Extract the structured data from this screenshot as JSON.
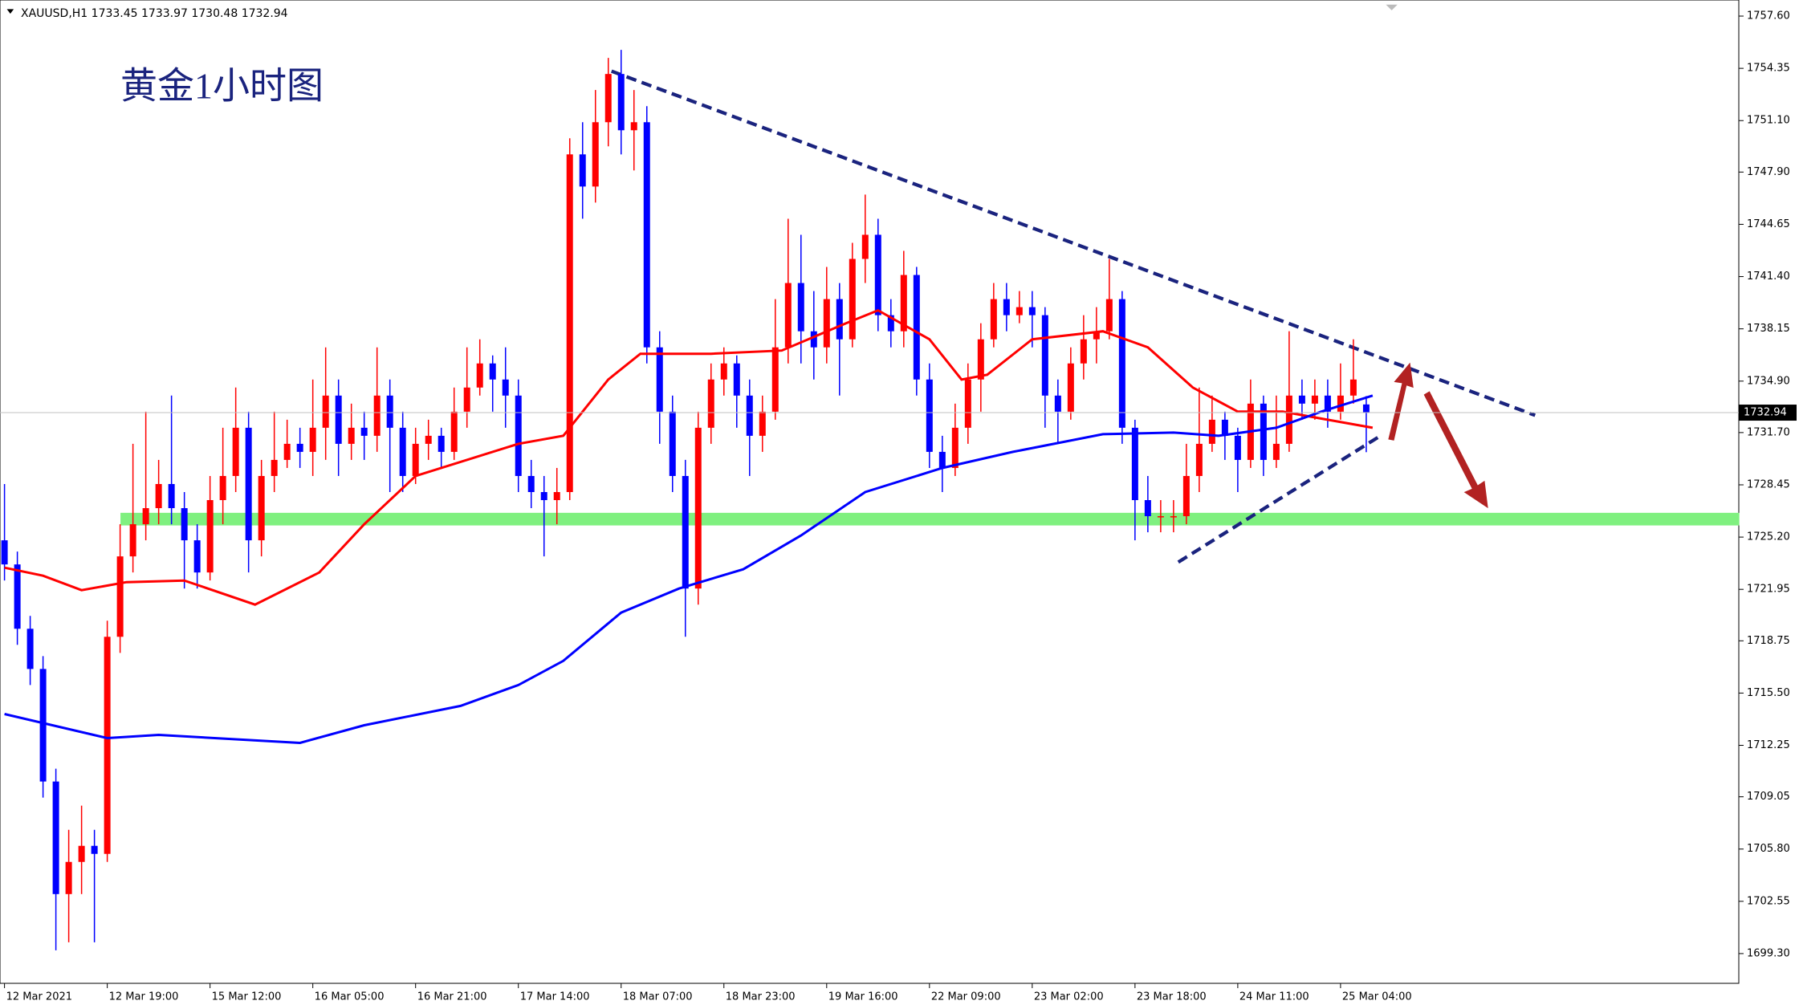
{
  "chart_data": {
    "type": "candlestick",
    "title": "黄金1小时图",
    "header": "XAUUSD,H1  1733.45 1733.97 1730.48 1732.94",
    "up_color": "#ff0000",
    "down_color": "#0000ff",
    "xlim": [
      -0.7,
      270
    ],
    "ylim": [
      1697.45,
      1758.6
    ],
    "xticks": [
      {
        "value": 0,
        "label": "12 Mar 2021"
      },
      {
        "value": 16,
        "label": "12 Mar 19:00"
      },
      {
        "value": 32,
        "label": "15 Mar 12:00"
      },
      {
        "value": 48,
        "label": "16 Mar 05:00"
      },
      {
        "value": 64,
        "label": "16 Mar 21:00"
      },
      {
        "value": 80,
        "label": "17 Mar 14:00"
      },
      {
        "value": 96,
        "label": "18 Mar 07:00"
      },
      {
        "value": 112,
        "label": "18 Mar 23:00"
      },
      {
        "value": 128,
        "label": "19 Mar 16:00"
      },
      {
        "value": 144,
        "label": "22 Mar 09:00"
      },
      {
        "value": 160,
        "label": "23 Mar 02:00"
      },
      {
        "value": 176,
        "label": "23 Mar 18:00"
      },
      {
        "value": 192,
        "label": "24 Mar 11:00"
      },
      {
        "value": 208,
        "label": "25 Mar 04:00"
      }
    ],
    "yticks": [
      {
        "value": 1699.3,
        "label": "1699.30"
      },
      {
        "value": 1702.55,
        "label": "1702.55"
      },
      {
        "value": 1705.8,
        "label": "1705.80"
      },
      {
        "value": 1709.05,
        "label": "1709.05"
      },
      {
        "value": 1712.25,
        "label": "1712.25"
      },
      {
        "value": 1715.5,
        "label": "1715.50"
      },
      {
        "value": 1718.75,
        "label": "1718.75"
      },
      {
        "value": 1721.95,
        "label": "1721.95"
      },
      {
        "value": 1725.2,
        "label": "1725.20"
      },
      {
        "value": 1728.45,
        "label": "1728.45"
      },
      {
        "value": 1731.7,
        "label": "1731.70"
      },
      {
        "value": 1734.9,
        "label": "1734.90"
      },
      {
        "value": 1738.15,
        "label": "1738.15"
      },
      {
        "value": 1741.4,
        "label": "1741.40"
      },
      {
        "value": 1744.65,
        "label": "1744.65"
      },
      {
        "value": 1747.9,
        "label": "1747.90"
      },
      {
        "value": 1751.1,
        "label": "1751.10"
      },
      {
        "value": 1754.35,
        "label": "1754.35"
      },
      {
        "value": 1757.6,
        "label": "1757.60"
      }
    ],
    "candles": {
      "x": [
        0,
        2,
        4,
        6,
        8,
        10,
        12,
        14,
        16,
        18,
        20,
        22,
        24,
        26,
        28,
        30,
        32,
        34,
        36,
        38,
        40,
        42,
        44,
        46,
        48,
        50,
        52,
        54,
        56,
        58,
        60,
        62,
        64,
        66,
        68,
        70,
        72,
        74,
        76,
        78,
        80,
        82,
        84,
        86,
        88,
        90,
        92,
        94,
        96,
        98,
        100,
        102,
        104,
        106,
        108,
        110,
        112,
        114,
        116,
        118,
        120,
        122,
        124,
        126,
        128,
        130,
        132,
        134,
        136,
        138,
        140,
        142,
        144,
        146,
        148,
        150,
        152,
        154,
        156,
        158,
        160,
        162,
        164,
        166,
        168,
        170,
        172,
        174,
        176,
        178,
        180,
        182,
        184,
        186,
        188,
        190,
        192,
        194,
        196,
        198,
        200,
        202,
        204,
        206,
        208,
        210,
        212
      ],
      "open": [
        1725,
        1723.5,
        1719.5,
        1717,
        1710,
        1703,
        1705,
        1706,
        1705.5,
        1719,
        1724,
        1726,
        1727,
        1728.5,
        1727,
        1725,
        1723,
        1727.5,
        1729,
        1732,
        1725,
        1729,
        1730,
        1731,
        1730.5,
        1732,
        1734,
        1731,
        1732,
        1731.5,
        1734,
        1732,
        1729,
        1731,
        1731.5,
        1730.5,
        1733,
        1734.5,
        1736,
        1735,
        1734,
        1729,
        1728,
        1727.5,
        1728,
        1749,
        1747,
        1751,
        1754,
        1750.5,
        1751,
        1737,
        1733,
        1729,
        1722,
        1732,
        1735,
        1736,
        1734,
        1731.5,
        1733,
        1737,
        1741,
        1738,
        1737,
        1740,
        1737.5,
        1742.5,
        1744,
        1739,
        1738,
        1741.5,
        1735,
        1730.5,
        1729.5,
        1732,
        1735,
        1737.5,
        1740,
        1739,
        1739.5,
        1739,
        1734,
        1733,
        1736,
        1737.5,
        1738,
        1740,
        1732,
        1727.5,
        1726.5,
        1726.5,
        1726.5,
        1729,
        1731,
        1732.5,
        1731.5,
        1730,
        1733.5,
        1730,
        1731,
        1734,
        1733.5,
        1734,
        1733,
        1734,
        1733.45
      ],
      "high": [
        1728.5,
        1724.3,
        1720.3,
        1717.8,
        1710.8,
        1707,
        1708.5,
        1707,
        1720,
        1726,
        1731,
        1733,
        1730,
        1734,
        1728,
        1726,
        1729,
        1732,
        1734.5,
        1733,
        1730,
        1733,
        1732.5,
        1732,
        1735,
        1737,
        1735,
        1733.5,
        1733,
        1737,
        1735,
        1733,
        1732,
        1732.5,
        1732,
        1734.5,
        1737,
        1737.5,
        1736.5,
        1737,
        1735,
        1730,
        1729,
        1729.5,
        1750,
        1751,
        1753,
        1755,
        1755.5,
        1753,
        1752,
        1738,
        1734,
        1730,
        1733,
        1736,
        1737,
        1736.5,
        1735,
        1734,
        1740,
        1745,
        1744,
        1740.5,
        1742,
        1741,
        1743.5,
        1746.5,
        1745,
        1740,
        1743,
        1742,
        1736,
        1731.5,
        1733.5,
        1736,
        1738.5,
        1741,
        1741,
        1740.5,
        1740.5,
        1739.5,
        1735,
        1737,
        1739,
        1739.5,
        1742.5,
        1740.5,
        1732.5,
        1729,
        1727.5,
        1727.5,
        1731,
        1734.5,
        1734,
        1733,
        1732,
        1735,
        1734,
        1734,
        1738,
        1735,
        1735,
        1735,
        1736,
        1737.5,
        1733.97
      ],
      "low": [
        1722.5,
        1718.5,
        1716,
        1709,
        1699.5,
        1700,
        1703,
        1700,
        1705,
        1718,
        1723,
        1725,
        1726,
        1726,
        1722,
        1722,
        1722.5,
        1726,
        1728,
        1723,
        1724,
        1728,
        1729.5,
        1729.5,
        1729,
        1730,
        1729,
        1730,
        1730,
        1730.5,
        1728,
        1728,
        1728.5,
        1730,
        1729.5,
        1730,
        1732,
        1734,
        1733,
        1732,
        1728,
        1727,
        1724,
        1726,
        1727.5,
        1745,
        1746,
        1749.5,
        1749,
        1748,
        1736,
        1731,
        1728,
        1719,
        1721,
        1731,
        1734,
        1732,
        1729,
        1730.5,
        1732.5,
        1736,
        1736,
        1735,
        1736,
        1734,
        1737,
        1741,
        1738,
        1737,
        1737,
        1734,
        1729.5,
        1728,
        1729,
        1731,
        1733,
        1737,
        1738,
        1738.5,
        1737,
        1732,
        1731,
        1732.5,
        1735,
        1736,
        1737.5,
        1731,
        1725,
        1725.5,
        1725.5,
        1725.5,
        1726,
        1728,
        1730.5,
        1730,
        1728,
        1729.5,
        1729,
        1729.5,
        1730.5,
        1732.5,
        1732.5,
        1732,
        1732.5,
        1733.5,
        1730.48
      ],
      "close": [
        1723.5,
        1719.5,
        1717,
        1710,
        1703,
        1705,
        1706,
        1705.5,
        1719,
        1724,
        1726,
        1727,
        1728.5,
        1727,
        1725,
        1723,
        1727.5,
        1729,
        1732,
        1725,
        1729,
        1730,
        1731,
        1730.5,
        1732,
        1734,
        1731,
        1732,
        1731.5,
        1734,
        1732,
        1729,
        1731,
        1731.5,
        1730.5,
        1733,
        1734.5,
        1736,
        1735,
        1734,
        1729,
        1728,
        1727.5,
        1728,
        1749,
        1747,
        1751,
        1754,
        1750.5,
        1751,
        1737,
        1733,
        1729,
        1722,
        1732,
        1735,
        1736,
        1734,
        1731.5,
        1733,
        1737,
        1741,
        1738,
        1737,
        1740,
        1737.5,
        1742.5,
        1744,
        1739,
        1738,
        1741.5,
        1735,
        1730.5,
        1729.5,
        1732,
        1735,
        1737.5,
        1740,
        1739,
        1739.5,
        1739,
        1734,
        1733,
        1736,
        1737.5,
        1738,
        1740,
        1732,
        1727.5,
        1726.5,
        1726.5,
        1726.5,
        1729,
        1731,
        1732.5,
        1731.5,
        1730,
        1733.5,
        1730,
        1731,
        1734,
        1733.5,
        1734,
        1733,
        1734,
        1735,
        1732.94
      ]
    },
    "lines": [
      {
        "color": "#ff0000",
        "x": [
          0,
          6,
          12,
          19,
          28,
          39,
          49,
          56,
          64,
          80,
          87,
          94,
          99,
          110,
          121,
          131,
          136,
          144,
          149,
          153,
          160,
          171,
          178,
          185,
          192,
          199,
          206,
          213
        ],
        "values": [
          1723.3,
          1722.8,
          1721.9,
          1722.4,
          1722.5,
          1721,
          1723,
          1726,
          1729,
          1731,
          1731.5,
          1735,
          1736.6,
          1736.6,
          1736.8,
          1738.5,
          1739.3,
          1737.5,
          1735,
          1735.3,
          1737.5,
          1738,
          1737,
          1734.5,
          1733,
          1733,
          1732.5,
          1732
        ]
      },
      {
        "color": "#0000ff",
        "x": [
          0,
          16,
          24,
          46,
          56,
          71,
          80,
          87,
          96,
          105,
          115,
          124,
          134,
          146,
          157,
          171,
          182,
          189,
          198,
          205,
          213
        ],
        "values": [
          1714.2,
          1712.7,
          1712.9,
          1712.4,
          1713.5,
          1714.7,
          1716,
          1717.5,
          1720.5,
          1722,
          1723.2,
          1725.3,
          1728,
          1729.5,
          1730.5,
          1731.6,
          1731.7,
          1731.5,
          1732,
          1733,
          1734
        ]
      }
    ]
  }
}
